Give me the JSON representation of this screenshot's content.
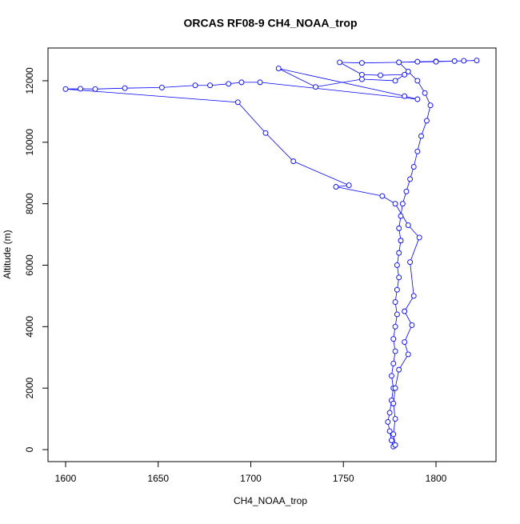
{
  "chart_data": {
    "type": "scatter-line",
    "title": "ORCAS RF08-9 CH4_NOAA_trop",
    "xlabel": "CH4_NOAA_trop",
    "ylabel": "Altitude (m)",
    "color": "#0000ff",
    "xlim": [
      1590.5,
      1832.4
    ],
    "ylim": [
      -390,
      13066
    ],
    "xticks": [
      1600,
      1650,
      1700,
      1750,
      1800
    ],
    "yticks": [
      0,
      2000,
      4000,
      6000,
      8000,
      10000,
      12000
    ],
    "x": [
      1777,
      1776,
      1775,
      1774,
      1775,
      1776,
      1777,
      1776,
      1777,
      1778,
      1777,
      1778,
      1779,
      1778,
      1779,
      1780,
      1779,
      1780,
      1781,
      1780,
      1781,
      1782,
      1784,
      1786,
      1788,
      1790,
      1792,
      1795,
      1797,
      1794,
      1790,
      1785,
      1780,
      1790,
      1800,
      1810,
      1815,
      1822,
      1800,
      1780,
      1760,
      1748,
      1760,
      1770,
      1783,
      1778,
      1760,
      1735,
      1715,
      1783,
      1790,
      1705,
      1695,
      1688,
      1678,
      1670,
      1652,
      1632,
      1616,
      1608,
      1600,
      1693,
      1708,
      1723,
      1753,
      1746,
      1771,
      1778,
      1785,
      1791,
      1786,
      1788,
      1783,
      1787,
      1783,
      1785,
      1780,
      1778,
      1777,
      1778,
      1777,
      1778
    ],
    "values": [
      100,
      300,
      600,
      900,
      1200,
      1600,
      2000,
      2400,
      2800,
      3200,
      3600,
      4000,
      4400,
      4800,
      5200,
      5600,
      6000,
      6400,
      6800,
      7200,
      7600,
      8000,
      8400,
      8800,
      9200,
      9700,
      10200,
      10700,
      11200,
      11600,
      12000,
      12300,
      12600,
      12620,
      12630,
      12640,
      12650,
      12660,
      12620,
      12600,
      12580,
      12600,
      12200,
      12180,
      12200,
      12000,
      12050,
      11800,
      12400,
      11500,
      11400,
      11950,
      11950,
      11900,
      11850,
      11850,
      11780,
      11760,
      11730,
      11740,
      11730,
      11300,
      10300,
      9380,
      8600,
      8550,
      8250,
      8000,
      7300,
      6900,
      6100,
      5000,
      4500,
      4050,
      3500,
      3100,
      2600,
      2000,
      1500,
      1000,
      500,
      150
    ]
  }
}
